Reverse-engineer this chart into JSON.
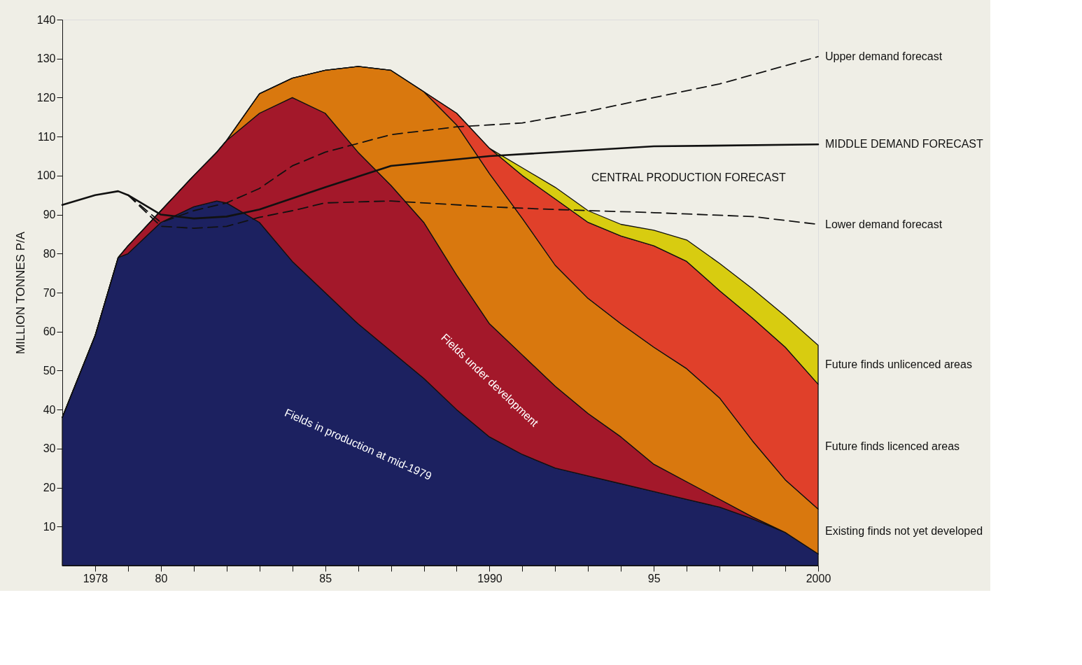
{
  "chart_data": {
    "type": "area",
    "stacked": true,
    "ylabel": "MILLION TONNES P/A",
    "x": [
      1977,
      1978,
      1978.7,
      1979,
      1980,
      1981,
      1981.7,
      1982,
      1983,
      1984,
      1985,
      1986,
      1987,
      1988,
      1989,
      1990,
      1991,
      1992,
      1993,
      1994,
      1995,
      1996,
      1997,
      1998,
      1999,
      2000
    ],
    "xlim": [
      1977,
      2000
    ],
    "ylim": [
      0,
      140
    ],
    "xticks": [
      1978,
      {
        "value": 1979,
        "label": null
      },
      {
        "value": 1980,
        "label": "80"
      },
      {
        "value": 1981,
        "label": null
      },
      {
        "value": 1982,
        "label": null
      },
      {
        "value": 1983,
        "label": null
      },
      {
        "value": 1984,
        "label": null
      },
      {
        "value": 1985,
        "label": "85"
      },
      {
        "value": 1986,
        "label": null
      },
      {
        "value": 1987,
        "label": null
      },
      {
        "value": 1988,
        "label": null
      },
      {
        "value": 1989,
        "label": null
      },
      1990,
      {
        "value": 1991,
        "label": null
      },
      {
        "value": 1992,
        "label": null
      },
      {
        "value": 1993,
        "label": null
      },
      {
        "value": 1994,
        "label": null
      },
      {
        "value": 1995,
        "label": "95"
      },
      {
        "value": 1996,
        "label": null
      },
      {
        "value": 1997,
        "label": null
      },
      {
        "value": 1998,
        "label": null
      },
      {
        "value": 1999,
        "label": null
      },
      2000
    ],
    "yticks": [
      10,
      20,
      30,
      40,
      50,
      60,
      70,
      80,
      90,
      100,
      110,
      120,
      130,
      140
    ],
    "series": [
      {
        "name": "Fields in production at mid-1979",
        "color": "#1c2160",
        "values": [
          38,
          59,
          79,
          80,
          88,
          92,
          93.5,
          93,
          88,
          78,
          70,
          62,
          55,
          48,
          40,
          33,
          28.5,
          25,
          23,
          21,
          19,
          17,
          15,
          12,
          8.5,
          3
        ]
      },
      {
        "name": "Fields under development",
        "color": "#a3182a",
        "values": [
          0,
          0,
          0,
          2,
          3,
          8,
          12.5,
          16,
          28,
          42,
          46,
          44,
          42.5,
          40,
          34.5,
          29,
          25.5,
          21,
          16,
          12,
          7,
          4.5,
          2,
          0.5,
          0,
          0
        ]
      },
      {
        "name": "Existing finds not yet developed",
        "color": "#d9780e",
        "values": [
          0,
          0,
          0,
          0,
          0,
          0,
          0,
          0,
          5,
          5,
          11,
          22,
          29.5,
          33.5,
          38.5,
          38.5,
          35,
          31,
          29.5,
          29,
          30,
          29,
          26,
          19.5,
          13.5,
          11.5
        ]
      },
      {
        "name": "Future finds licenced areas",
        "color": "#e0402a",
        "values": [
          0,
          0,
          0,
          0,
          0,
          0,
          0,
          0,
          0,
          0,
          0,
          0,
          0,
          0,
          3,
          6.5,
          11,
          17,
          19.5,
          22.5,
          26,
          27.5,
          27.5,
          31.5,
          34,
          32
        ]
      },
      {
        "name": "Future finds unlicenced areas",
        "color": "#d8cc10",
        "values": [
          0,
          0,
          0,
          0,
          0,
          0,
          0,
          0,
          0,
          0,
          0,
          0,
          0,
          0,
          0,
          0,
          2,
          3,
          3,
          3,
          4,
          5.5,
          7,
          7.5,
          8,
          10
        ]
      },
      {
        "name": "Upper demand forecast",
        "type": "line",
        "line_style": "dashed",
        "color": "#111111",
        "x": [
          1979,
          1980,
          1981,
          1982,
          1983,
          1984,
          1985,
          1987,
          1989,
          1991,
          1993,
          1995,
          1997,
          2000
        ],
        "values": [
          95,
          88,
          91,
          93,
          96.7,
          102.5,
          106,
          110.5,
          112.5,
          113.5,
          116.5,
          120,
          123.5,
          130.5
        ]
      },
      {
        "name": "MIDDLE DEMAND FORECAST",
        "type": "line",
        "line_style": "solid",
        "color": "#111111",
        "x": [
          1977,
          1978,
          1978.7,
          1979,
          1980,
          1981,
          1982,
          1983,
          1985,
          1987,
          1990,
          1995,
          2000
        ],
        "values": [
          92.5,
          95,
          96,
          95,
          90,
          89,
          89.5,
          91.3,
          97,
          102.5,
          105,
          107.5,
          108
        ]
      },
      {
        "name": "Lower demand forecast",
        "type": "line",
        "line_style": "dashed",
        "color": "#111111",
        "x": [
          1979,
          1980,
          1981,
          1982,
          1983,
          1984,
          1985,
          1987,
          1990,
          1992,
          1995,
          1998,
          2000
        ],
        "values": [
          95,
          87,
          86.5,
          87,
          89.3,
          91,
          93,
          93.5,
          92,
          91.3,
          90.5,
          89.5,
          87.5
        ]
      }
    ],
    "annotations": [
      "CENTRAL PRODUCTION FORECAST"
    ]
  }
}
